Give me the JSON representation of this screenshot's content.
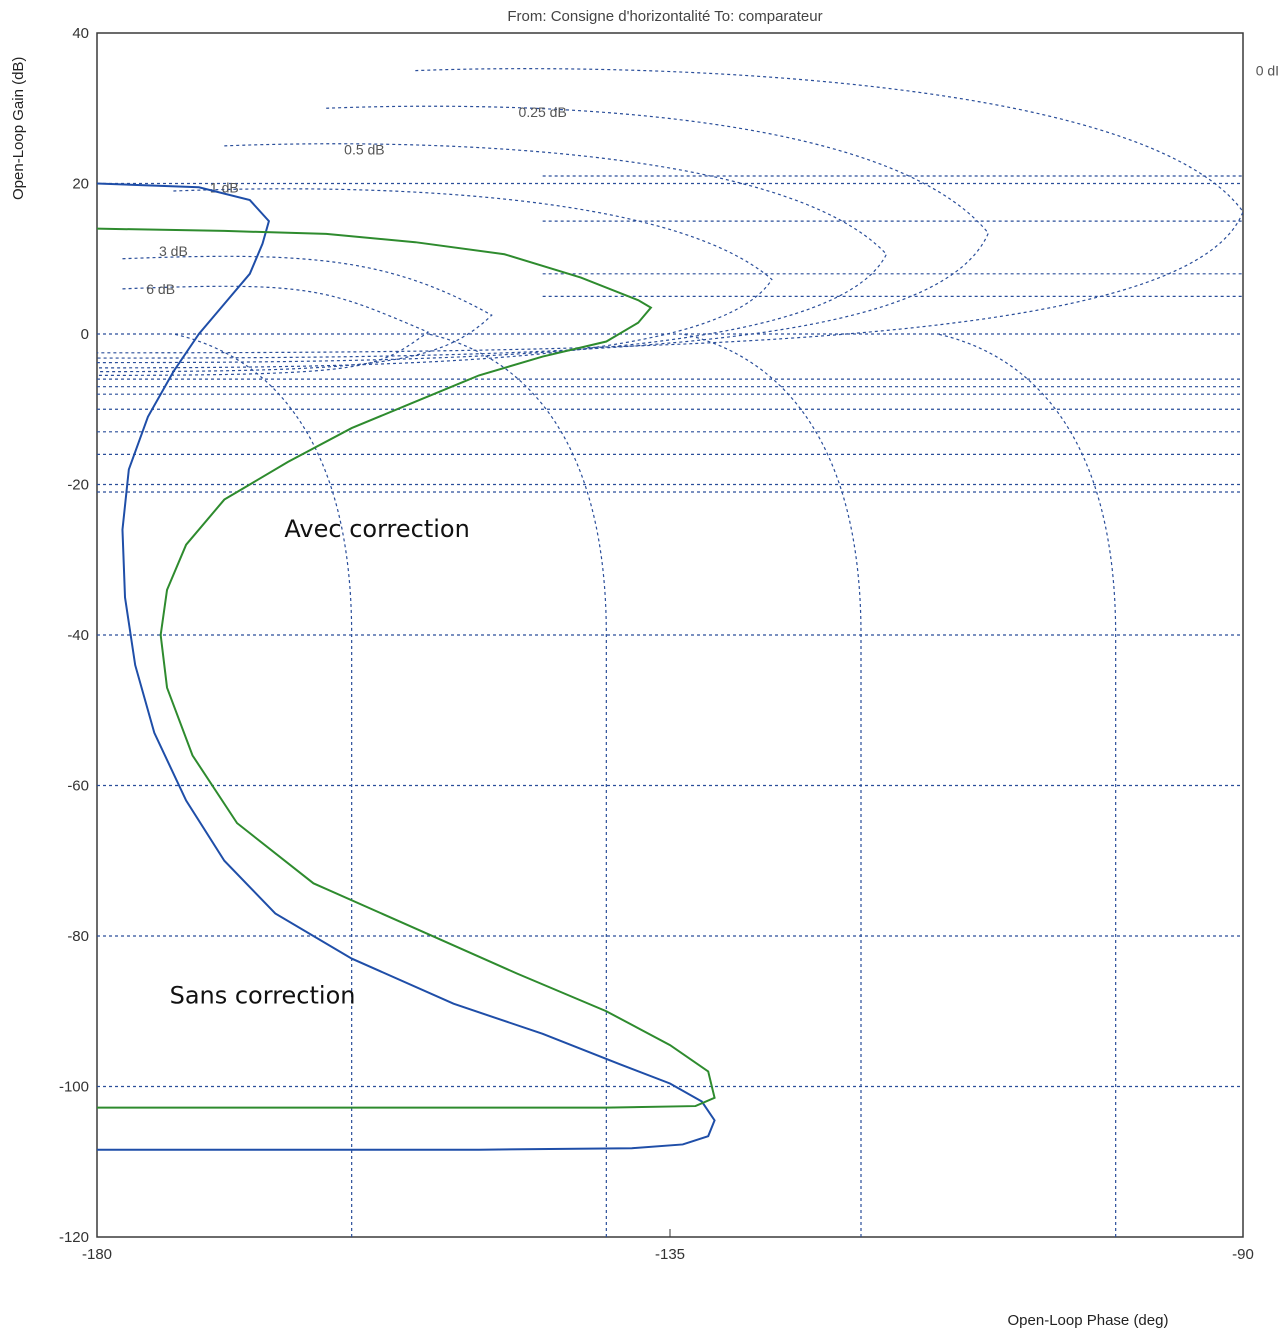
{
  "chart_data": {
    "type": "line",
    "title": "From: Consigne d'horizontalité  To: comparateur",
    "xlabel": "Open-Loop Phase (deg)",
    "ylabel": "Open-Loop Gain (dB)",
    "xlim": [
      -180,
      -90
    ],
    "ylim": [
      -120,
      40
    ],
    "x_ticks": [
      -180,
      -135,
      -90
    ],
    "y_ticks": [
      40,
      20,
      0,
      -20,
      -40,
      -60,
      -80,
      -100,
      -120
    ],
    "grid": true,
    "grid_labels": [
      "0.25 dB",
      "0.5 dB",
      "1 dB",
      "3 dB",
      "6 dB",
      "0 dI"
    ],
    "annotations": [
      {
        "text": "Avec correction",
        "series": "green",
        "x": -158,
        "y": -27
      },
      {
        "text": "Sans correction",
        "series": "blue",
        "x": -167,
        "y": -89
      }
    ],
    "series": [
      {
        "color": "#1f4ea8",
        "x": [
          -180,
          -172,
          -168,
          -166.5,
          -167,
          -168,
          -170,
          -172,
          -174,
          -176,
          -177.5,
          -178,
          -177.8,
          -177,
          -175.5,
          -173,
          -170,
          -166,
          -160,
          -152,
          -145,
          -139,
          -135,
          -132.5,
          -131.5,
          -132,
          -134,
          -138,
          -150,
          -165,
          -180
        ],
        "y": [
          20,
          19.5,
          17.8,
          15,
          12,
          8,
          4,
          0,
          -5,
          -11,
          -18,
          -26,
          -35,
          -44,
          -53,
          -62,
          -70,
          -77,
          -83,
          -89,
          -93,
          -97,
          -99.6,
          -102,
          -104.5,
          -106.6,
          -107.7,
          -108.2,
          -108.4,
          -108.4,
          -108.4
        ]
      },
      {
        "color": "#2e8b2e",
        "x": [
          -180,
          -170,
          -162,
          -155,
          -148,
          -142,
          -137.5,
          -136.5,
          -137.5,
          -140,
          -145,
          -150,
          -155,
          -160,
          -165,
          -170,
          -173,
          -174.5,
          -175,
          -174.5,
          -172.5,
          -169,
          -163,
          -155,
          -147,
          -140,
          -135,
          -132,
          -131.5,
          -133,
          -140,
          -155,
          -170,
          -180
        ],
        "y": [
          14,
          13.7,
          13.3,
          12.2,
          10.6,
          7.5,
          4.5,
          3.5,
          1.5,
          -1,
          -3,
          -5.5,
          -9,
          -12.5,
          -17,
          -22,
          -28,
          -34,
          -40,
          -47,
          -56,
          -65,
          -73,
          -79,
          -85,
          -90,
          -94.5,
          -98,
          -101.5,
          -102.6,
          -102.8,
          -102.8,
          -102.8,
          -102.8
        ]
      }
    ]
  }
}
